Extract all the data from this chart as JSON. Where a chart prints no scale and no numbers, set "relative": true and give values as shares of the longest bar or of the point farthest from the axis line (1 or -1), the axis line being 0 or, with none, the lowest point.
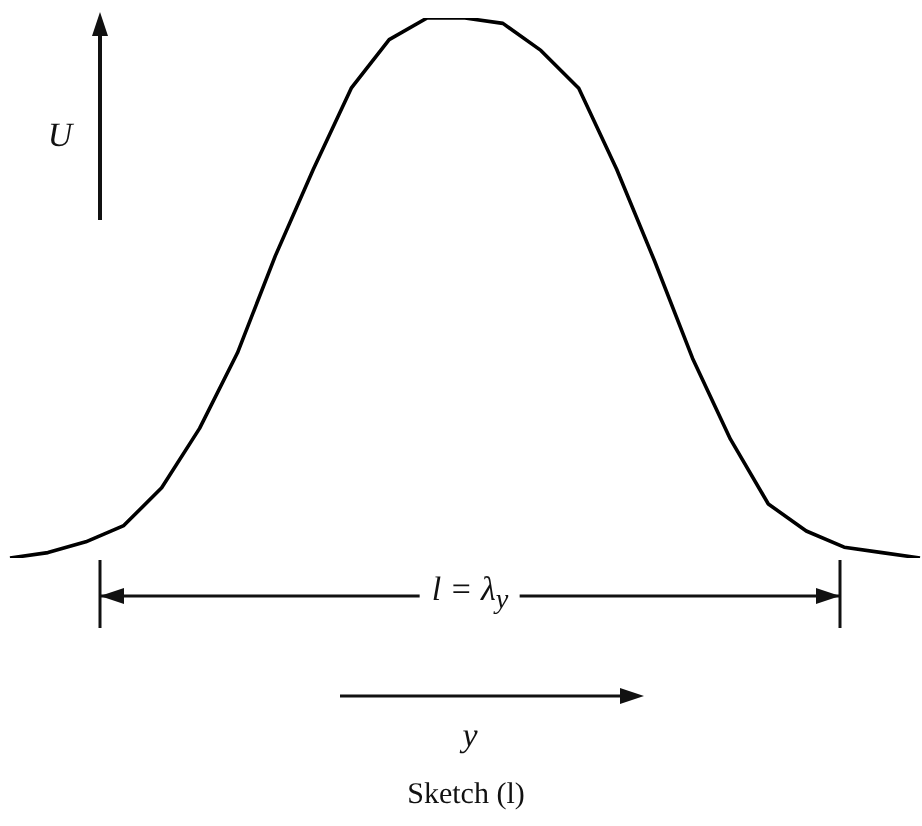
{
  "chart_data": {
    "type": "line",
    "relative": true,
    "xlabel": "y",
    "ylabel": "U",
    "annotations": [
      "l = λ$_{y}$",
      "Sketch (l)"
    ],
    "categories": [
      null,
      null,
      null,
      null,
      null,
      null,
      null,
      null,
      null,
      null,
      null,
      null,
      null,
      null,
      null,
      null,
      null,
      null,
      null,
      null,
      null,
      null,
      null,
      null,
      null
    ],
    "values": [
      0,
      0.01,
      0.03,
      0.06,
      0.13,
      0.24,
      0.38,
      0.56,
      0.72,
      0.87,
      0.96,
      1,
      1,
      0.99,
      0.94,
      0.87,
      0.72,
      0.55,
      0.37,
      0.22,
      0.1,
      0.05,
      0.02,
      0.01,
      0
    ],
    "color": "#000000",
    "marker": "none",
    "line_style": "solid",
    "grid": false,
    "legend": false
  }
}
